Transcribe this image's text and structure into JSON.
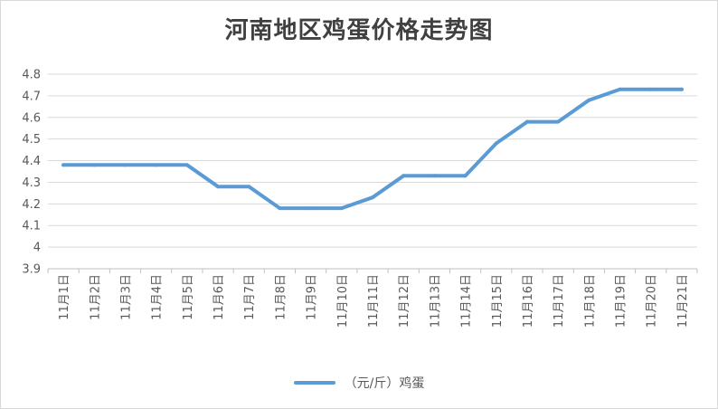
{
  "chart_data": {
    "type": "line",
    "title": "河南地区鸡蛋价格走势图",
    "categories": [
      "11月1日",
      "11月2日",
      "11月3日",
      "11月4日",
      "11月5日",
      "11月6日",
      "11月7日",
      "11月8日",
      "11月9日",
      "11月10日",
      "11月11日",
      "11月12日",
      "11月13日",
      "11月14日",
      "11月15日",
      "11月16日",
      "11月17日",
      "11月18日",
      "11月19日",
      "11月20日",
      "11月21日"
    ],
    "series": [
      {
        "name": "（元/斤）鸡蛋",
        "color": "#5b9bd5",
        "values": [
          4.38,
          4.38,
          4.38,
          4.38,
          4.38,
          4.28,
          4.28,
          4.18,
          4.18,
          4.18,
          4.23,
          4.33,
          4.33,
          4.33,
          4.48,
          4.58,
          4.58,
          4.68,
          4.73,
          4.73,
          4.73
        ]
      }
    ],
    "yticks": [
      "3.9",
      "4",
      "4.1",
      "4.2",
      "4.3",
      "4.4",
      "4.5",
      "4.6",
      "4.7",
      "4.8"
    ],
    "ylim": [
      3.9,
      4.8
    ],
    "xlabel": "",
    "ylabel": "",
    "grid": true,
    "legend_position": "bottom"
  }
}
